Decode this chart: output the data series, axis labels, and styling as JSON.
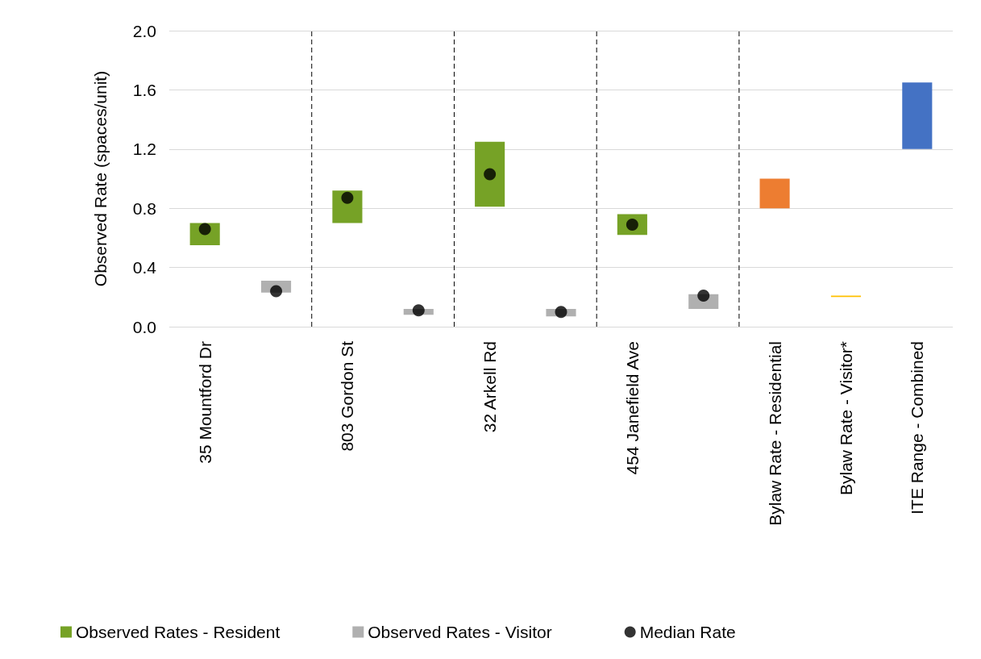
{
  "chart_data": {
    "type": "bar",
    "ylabel": "Observed Rate (spaces/unit)",
    "categories": [
      "35 Mountford Dr",
      null,
      "803 Gordon St",
      null,
      "32 Arkell Rd",
      null,
      "454 Janefield Ave",
      null,
      "Bylaw Rate - Residential",
      "Bylaw Rate - Visitor*",
      "ITE Range - Combined"
    ],
    "series": [
      {
        "name": "Observed Rates - Resident",
        "color": "#76a226",
        "values": [
          0.15,
          null,
          0.22,
          null,
          0.44,
          null,
          0.14,
          null,
          null,
          null,
          null
        ],
        "base": [
          0.55,
          null,
          0.7,
          null,
          0.81,
          null,
          0.62,
          null,
          null,
          null,
          null
        ]
      },
      {
        "name": "Observed Rates - Visitor",
        "color": "#b0b0b0",
        "values": [
          null,
          0.08,
          null,
          0.04,
          null,
          0.05,
          null,
          0.1,
          null,
          null,
          null
        ],
        "base": [
          null,
          0.23,
          null,
          0.08,
          null,
          0.07,
          null,
          0.12,
          null,
          null,
          null
        ]
      },
      {
        "colors": [
          null,
          null,
          null,
          null,
          null,
          null,
          null,
          null,
          "#ed7d31",
          "#ffc000",
          "#4472c4"
        ],
        "values": [
          null,
          null,
          null,
          null,
          null,
          null,
          null,
          null,
          0.2,
          0.01,
          0.45
        ],
        "base": [
          null,
          null,
          null,
          null,
          null,
          null,
          null,
          null,
          0.8,
          0.2,
          1.2
        ]
      },
      {
        "type": "scatter",
        "name": "Median Rate",
        "color": "#000000",
        "marker": "circle",
        "values": [
          0.66,
          0.24,
          0.87,
          0.11,
          1.03,
          0.1,
          0.69,
          0.21,
          null,
          null,
          null
        ]
      }
    ],
    "ylim": [
      0,
      2.0
    ],
    "yticks": [
      {
        "value": 0,
        "label": "0.0"
      },
      0.4,
      0.8,
      1.2,
      1.6,
      {
        "value": 2.0,
        "label": "2.0"
      }
    ],
    "grid": "y",
    "legend": "bottom"
  }
}
